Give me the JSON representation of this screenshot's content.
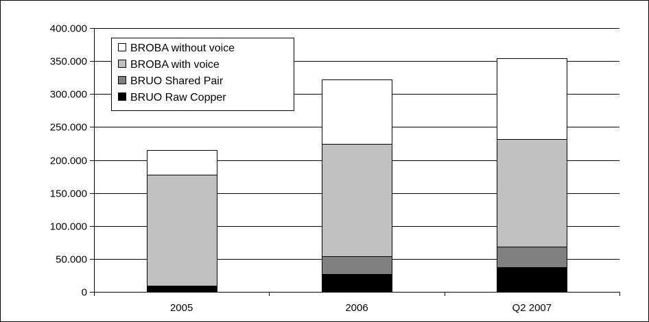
{
  "chart_data": {
    "type": "bar",
    "stacked": true,
    "categories": [
      "2005",
      "2006",
      "Q2 2007"
    ],
    "series": [
      {
        "name": "BRUO Raw Copper",
        "values": [
          9000,
          27000,
          37000
        ],
        "color": "#000000"
      },
      {
        "name": "BRUO Shared Pair",
        "values": [
          0,
          27000,
          32000
        ],
        "color": "#808080"
      },
      {
        "name": "BROBA with voice",
        "values": [
          169000,
          170000,
          163000
        ],
        "color": "#c0c0c0"
      },
      {
        "name": "BROBA without voice",
        "values": [
          37000,
          98000,
          122000
        ],
        "color": "#ffffff"
      }
    ],
    "title": "",
    "xlabel": "",
    "ylabel": "",
    "ylim": [
      0,
      400000
    ],
    "yticks": [
      0,
      50000,
      100000,
      150000,
      200000,
      250000,
      300000,
      350000,
      400000
    ],
    "ytick_labels": [
      "0",
      "50.000",
      "100.000",
      "150.000",
      "200.000",
      "250.000",
      "300.000",
      "350.000",
      "400.000"
    ],
    "grid": true,
    "legend_position": "top-left",
    "legend_order": [
      "BROBA without voice",
      "BROBA with voice",
      "BRUO Shared Pair",
      "BRUO Raw Copper"
    ]
  }
}
